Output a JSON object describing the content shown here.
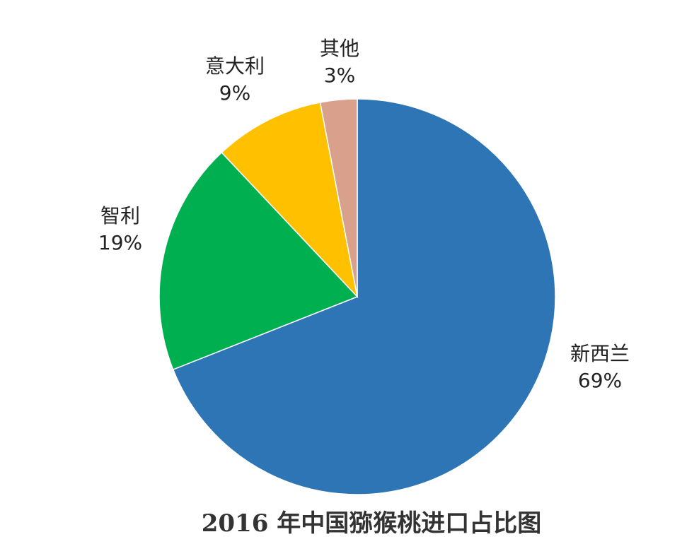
{
  "chart_data": {
    "type": "pie",
    "title": "2016 年中国猕猴桃进口占比图",
    "slices": [
      {
        "label": "新西兰",
        "value": 69,
        "value_label": "69%",
        "color": "#2e75b6"
      },
      {
        "label": "智利",
        "value": 19,
        "value_label": "19%",
        "color": "#00b050"
      },
      {
        "label": "意大利",
        "value": 9,
        "value_label": "9%",
        "color": "#ffc000"
      },
      {
        "label": "其他",
        "value": 3,
        "value_label": "3%",
        "color": "#d9a08c"
      }
    ],
    "legend": "none",
    "start_angle": "12 o'clock",
    "direction": "clockwise"
  }
}
